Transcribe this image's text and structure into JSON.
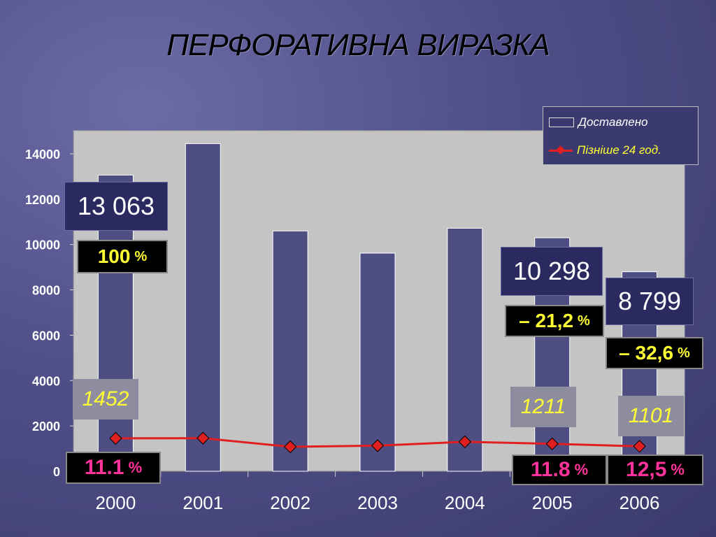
{
  "title": "ПЕРФОРАТИВНА  ВИРАЗКА",
  "chart_data": {
    "type": "bar",
    "categories": [
      "2000",
      "2001",
      "2002",
      "2003",
      "2004",
      "2005",
      "2006"
    ],
    "series": [
      {
        "name": "Доставлено",
        "type": "bar",
        "values": [
          13063,
          14450,
          10600,
          9620,
          10720,
          10298,
          8799
        ]
      },
      {
        "name": "Пізніше 24 год.",
        "type": "line",
        "values": [
          1452,
          1460,
          1080,
          1130,
          1300,
          1211,
          1101
        ]
      }
    ],
    "ylim": [
      0,
      14000
    ],
    "yticks": [
      "0",
      "2000",
      "4000",
      "6000",
      "8000",
      "10000",
      "12000",
      "14000"
    ],
    "colors": {
      "bar": "#4f4e82",
      "line": "#e02020",
      "plot_bg": "#c4c4c4"
    },
    "legend_position": "top-right",
    "annotations": {
      "y2000": {
        "total": "13 063",
        "pct": "100",
        "pct_unit": "%",
        "late": "1452",
        "rate": "11.1",
        "rate_unit": "%"
      },
      "y2005": {
        "total": "10 298",
        "pct": "– 21,2",
        "pct_unit": "%",
        "late": "1211",
        "rate": "11.8",
        "rate_unit": "%"
      },
      "y2006": {
        "total": "8 799",
        "pct": "– 32,6",
        "pct_unit": "%",
        "late": "1101",
        "rate": "12,5",
        "rate_unit": "%"
      }
    }
  }
}
